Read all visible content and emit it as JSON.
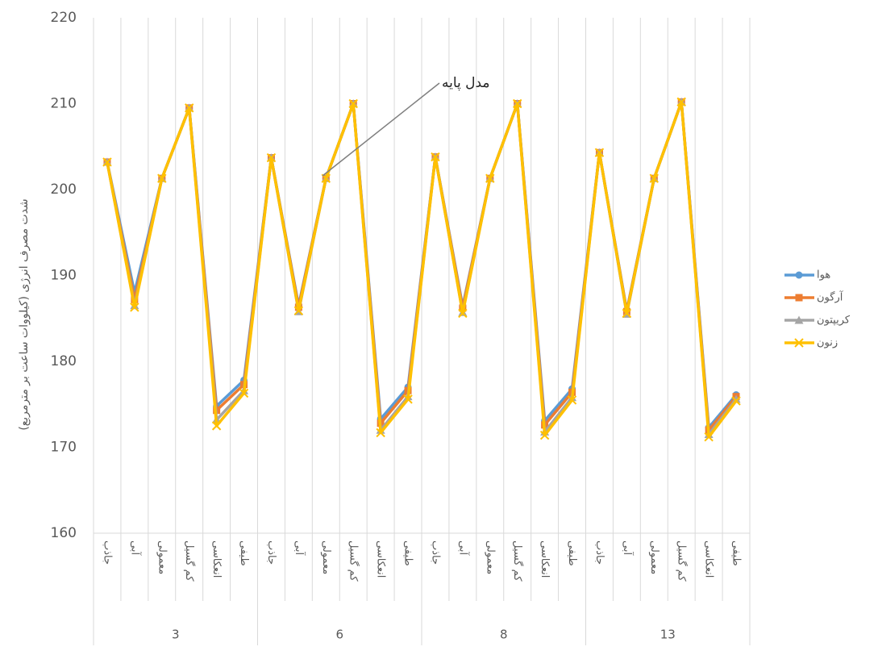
{
  "chart_data": {
    "type": "line",
    "ylabel": "شدت مصرف انرژی (کیلووات ساعت بر مترمربع)",
    "categories": [
      "جاذب",
      "آبی",
      "معمولی",
      "کم گسیل",
      "انعکاسی",
      "طیفی",
      "جاذب",
      "آبی",
      "معمولی",
      "کم گسیل",
      "انعکاسی",
      "طیفی",
      "جاذب",
      "آبی",
      "معمولی",
      "کم گسیل",
      "انعکاسی",
      "طیفی",
      "جاذب",
      "آبی",
      "معمولی",
      "کم گسیل",
      "انعکاسی",
      "طیفی"
    ],
    "groups": [
      "3",
      "6",
      "8",
      "13"
    ],
    "series": [
      {
        "name": "هوا",
        "color": "#5b9bd5",
        "marker": "circle",
        "values": [
          203.2,
          188,
          201.3,
          209.5,
          174.8,
          177.8,
          203.7,
          186.5,
          201.3,
          210,
          173.3,
          177,
          203.8,
          186.4,
          201.3,
          210,
          173.1,
          176.8,
          204.3,
          185.9,
          201.3,
          210.2,
          172.3,
          176.1
        ]
      },
      {
        "name": "آرگون",
        "color": "#ed7d31",
        "marker": "square",
        "values": [
          203.2,
          187.2,
          201.3,
          209.5,
          174.3,
          177.3,
          203.7,
          186.3,
          201.3,
          210,
          172.8,
          176.6,
          203.8,
          186.2,
          201.3,
          210,
          172.6,
          176.4,
          204.3,
          185.8,
          201.3,
          210.2,
          172,
          175.9
        ]
      },
      {
        "name": "کریپتون",
        "color": "#a5a5a5",
        "marker": "triangle",
        "values": [
          203.2,
          186.5,
          201.3,
          209.5,
          173.2,
          176.6,
          203.7,
          185.8,
          201.3,
          210,
          172,
          175.9,
          203.8,
          185.7,
          201.3,
          210,
          171.8,
          175.8,
          204.3,
          185.5,
          201.3,
          210.2,
          171.5,
          175.6
        ]
      },
      {
        "name": "زنون",
        "color": "#ffc000",
        "marker": "x",
        "values": [
          203.2,
          186.3,
          201.3,
          209.5,
          172.5,
          176.3,
          203.7,
          185.9,
          201.3,
          210,
          171.7,
          175.6,
          203.8,
          185.6,
          201.3,
          210,
          171.4,
          175.5,
          204.3,
          185.6,
          201.3,
          210.2,
          171.2,
          175.4
        ]
      }
    ],
    "annotations": [
      {
        "text": "مدل پایه"
      }
    ],
    "ylim": [
      160,
      220
    ],
    "yticks": [
      160,
      170,
      180,
      190,
      200,
      210,
      220
    ],
    "grid": false,
    "legend": "right"
  }
}
